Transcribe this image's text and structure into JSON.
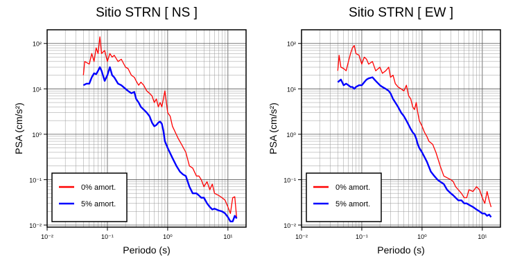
{
  "chart_data": [
    {
      "type": "line",
      "title": "Sitio STRN [ NS ]",
      "xlabel": "Periodo (s)",
      "ylabel": "PSA (cm/s²)",
      "xscale": "log",
      "yscale": "log",
      "xlim": [
        0.01,
        20
      ],
      "ylim": [
        0.009,
        200
      ],
      "x_ticks": [
        "10⁻²",
        "10⁻¹",
        "10⁰",
        "10¹"
      ],
      "y_ticks": [
        "10⁻²",
        "10⁻¹",
        "10⁰",
        "10¹",
        "10²"
      ],
      "grid": true,
      "legend_position": "bottom-left",
      "series": [
        {
          "name": "0% amort.",
          "color": "#ff0000",
          "x": [
            0.04,
            0.042,
            0.045,
            0.05,
            0.055,
            0.06,
            0.065,
            0.07,
            0.075,
            0.08,
            0.09,
            0.1,
            0.11,
            0.12,
            0.13,
            0.15,
            0.17,
            0.2,
            0.22,
            0.25,
            0.28,
            0.3,
            0.33,
            0.36,
            0.4,
            0.45,
            0.5,
            0.55,
            0.6,
            0.65,
            0.7,
            0.75,
            0.8,
            0.85,
            0.9,
            1.0,
            1.1,
            1.2,
            1.3,
            1.5,
            1.7,
            2.0,
            2.3,
            2.6,
            3.0,
            3.3,
            3.6,
            4.0,
            4.5,
            5.0,
            5.5,
            6.0,
            7.0,
            8.0,
            9.0,
            10.0,
            11.0,
            12.0,
            13.0,
            14.0
          ],
          "y": [
            20,
            40,
            38,
            35,
            60,
            40,
            80,
            60,
            140,
            60,
            70,
            40,
            60,
            50,
            55,
            40,
            45,
            30,
            28,
            20,
            18,
            15,
            12,
            14,
            12,
            9,
            8,
            7,
            5,
            6,
            4,
            5,
            4,
            6,
            9,
            3,
            2.5,
            1.5,
            1.2,
            0.8,
            0.6,
            0.4,
            0.2,
            0.18,
            0.12,
            0.12,
            0.1,
            0.07,
            0.09,
            0.06,
            0.08,
            0.05,
            0.045,
            0.04,
            0.035,
            0.025,
            0.018,
            0.04,
            0.042,
            0.014
          ]
        },
        {
          "name": "5% amort.",
          "color": "#0000ff",
          "x": [
            0.04,
            0.045,
            0.05,
            0.055,
            0.06,
            0.065,
            0.07,
            0.075,
            0.08,
            0.09,
            0.1,
            0.11,
            0.12,
            0.13,
            0.15,
            0.17,
            0.2,
            0.22,
            0.25,
            0.28,
            0.3,
            0.33,
            0.36,
            0.4,
            0.45,
            0.5,
            0.55,
            0.6,
            0.65,
            0.7,
            0.75,
            0.8,
            0.85,
            0.9,
            1.0,
            1.2,
            1.4,
            1.6,
            1.8,
            2.0,
            2.3,
            2.6,
            3.0,
            3.3,
            3.6,
            4.0,
            4.5,
            5.0,
            5.5,
            6.0,
            7.0,
            8.0,
            9.0,
            10.0,
            11.0,
            12.0,
            13.0,
            14.0
          ],
          "y": [
            12,
            13,
            13,
            18,
            22,
            21,
            25,
            30,
            25,
            15,
            20,
            30,
            20,
            18,
            13,
            12,
            10,
            9,
            8,
            8.5,
            6,
            5,
            4,
            3.5,
            3,
            2.5,
            1.8,
            1.5,
            1.6,
            1.8,
            1.9,
            1.7,
            1.2,
            0.7,
            0.5,
            0.3,
            0.2,
            0.15,
            0.13,
            0.12,
            0.07,
            0.05,
            0.05,
            0.045,
            0.04,
            0.04,
            0.03,
            0.025,
            0.022,
            0.023,
            0.021,
            0.02,
            0.018,
            0.015,
            0.012,
            0.012,
            0.016,
            0.014
          ]
        }
      ]
    },
    {
      "type": "line",
      "title": "Sitio STRN [ EW ]",
      "xlabel": "Periodo (s)",
      "ylabel": "PSA (cm/s²)",
      "xscale": "log",
      "yscale": "log",
      "xlim": [
        0.01,
        20
      ],
      "ylim": [
        0.009,
        200
      ],
      "x_ticks": [
        "10⁻²",
        "10⁻¹",
        "10⁰",
        "10¹"
      ],
      "y_ticks": [
        "10⁻²",
        "10⁻¹",
        "10⁰",
        "10¹",
        "10²"
      ],
      "grid": true,
      "legend_position": "bottom-left",
      "series": [
        {
          "name": "0% amort.",
          "color": "#ff0000",
          "x": [
            0.04,
            0.042,
            0.045,
            0.05,
            0.055,
            0.06,
            0.065,
            0.07,
            0.075,
            0.08,
            0.09,
            0.1,
            0.11,
            0.12,
            0.13,
            0.15,
            0.17,
            0.2,
            0.22,
            0.25,
            0.28,
            0.3,
            0.33,
            0.36,
            0.4,
            0.45,
            0.5,
            0.55,
            0.6,
            0.65,
            0.7,
            0.75,
            0.8,
            0.85,
            0.9,
            1.0,
            1.1,
            1.2,
            1.3,
            1.5,
            1.7,
            2.0,
            2.3,
            2.6,
            3.0,
            3.3,
            3.6,
            4.0,
            4.5,
            5.0,
            5.5,
            6.0,
            7.0,
            8.0,
            9.0,
            10.0,
            11.0,
            12.0,
            13.0,
            14.0
          ],
          "y": [
            25,
            55,
            30,
            28,
            25,
            40,
            60,
            80,
            90,
            60,
            55,
            35,
            50,
            45,
            35,
            40,
            25,
            30,
            22,
            25,
            30,
            18,
            20,
            13,
            11,
            10,
            9,
            12,
            7,
            6,
            4,
            3.5,
            5,
            3,
            2,
            1.5,
            1.1,
            0.9,
            0.7,
            0.6,
            0.4,
            0.2,
            0.12,
            0.11,
            0.1,
            0.09,
            0.07,
            0.06,
            0.05,
            0.04,
            0.04,
            0.06,
            0.055,
            0.07,
            0.06,
            0.04,
            0.03,
            0.055,
            0.035,
            0.025
          ]
        },
        {
          "name": "5% amort.",
          "color": "#0000ff",
          "x": [
            0.04,
            0.045,
            0.05,
            0.055,
            0.06,
            0.065,
            0.07,
            0.075,
            0.08,
            0.09,
            0.1,
            0.11,
            0.12,
            0.13,
            0.15,
            0.17,
            0.2,
            0.22,
            0.25,
            0.28,
            0.3,
            0.33,
            0.36,
            0.4,
            0.45,
            0.5,
            0.55,
            0.6,
            0.65,
            0.7,
            0.75,
            0.8,
            0.85,
            0.9,
            1.0,
            1.2,
            1.4,
            1.6,
            1.8,
            2.0,
            2.3,
            2.6,
            3.0,
            3.3,
            3.6,
            4.0,
            4.5,
            5.0,
            5.5,
            6.0,
            7.0,
            8.0,
            9.0,
            10.0,
            11.0,
            12.0,
            13.0,
            14.0
          ],
          "y": [
            14,
            16,
            12,
            13,
            12,
            11,
            11,
            10,
            11,
            12,
            12,
            14,
            16,
            17,
            18,
            15,
            12,
            11,
            10,
            9,
            8,
            6,
            5,
            4,
            3,
            2.5,
            2,
            1.6,
            1.3,
            1.1,
            1.0,
            0.8,
            0.6,
            0.5,
            0.4,
            0.25,
            0.15,
            0.12,
            0.1,
            0.09,
            0.08,
            0.06,
            0.05,
            0.045,
            0.04,
            0.035,
            0.035,
            0.03,
            0.03,
            0.028,
            0.025,
            0.022,
            0.02,
            0.018,
            0.018,
            0.016,
            0.017,
            0.015
          ]
        }
      ]
    }
  ]
}
